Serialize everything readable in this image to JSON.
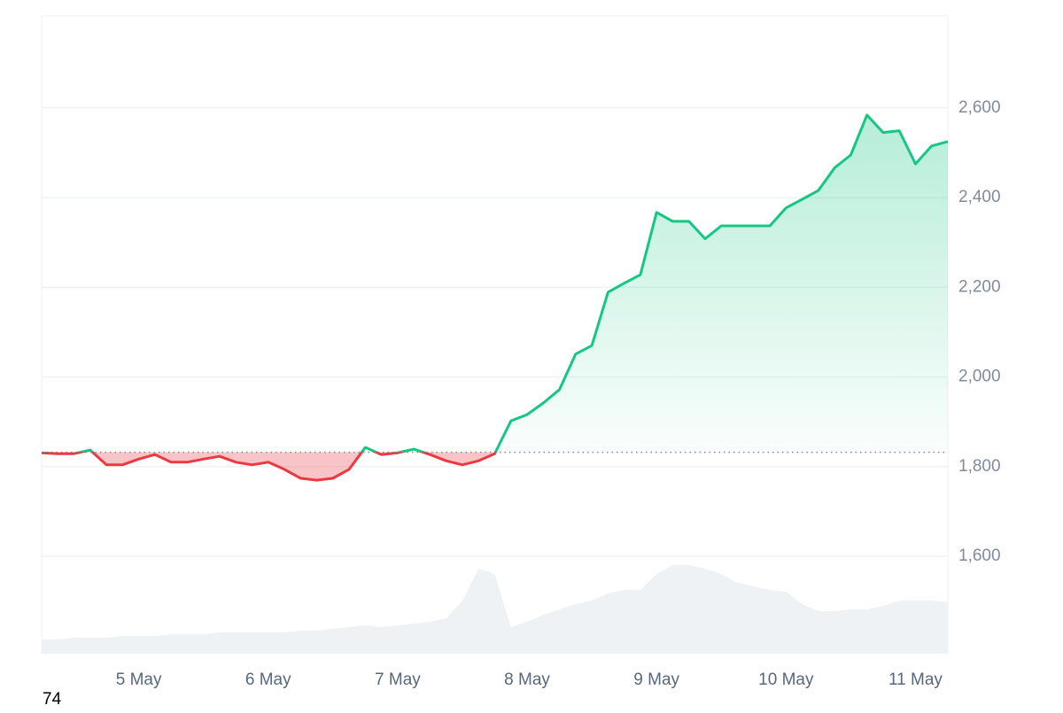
{
  "chart_data": {
    "type": "line",
    "categories": [
      null,
      null,
      null,
      null,
      null,
      null,
      "5 May",
      null,
      null,
      null,
      null,
      null,
      null,
      null,
      "6 May",
      null,
      null,
      null,
      null,
      null,
      null,
      null,
      "7 May",
      null,
      null,
      null,
      null,
      null,
      null,
      null,
      "8 May",
      null,
      null,
      null,
      null,
      null,
      null,
      null,
      "9 May",
      null,
      null,
      null,
      null,
      null,
      null,
      null,
      "10 May",
      null,
      null,
      null,
      null,
      null,
      null,
      null,
      "11 May",
      null,
      null
    ],
    "values": [
      1831,
      1829,
      1829,
      1837,
      1804,
      1804,
      1817,
      1827,
      1810,
      1810,
      1817,
      1823,
      1810,
      1804,
      1810,
      1794,
      1774,
      1770,
      1774,
      1794,
      1843,
      1827,
      1831,
      1839,
      1827,
      1813,
      1804,
      1813,
      1829,
      1902,
      1916,
      1942,
      1972,
      2051,
      2070,
      2189,
      2209,
      2228,
      2367,
      2347,
      2347,
      2308,
      2337,
      2337,
      2337,
      2337,
      2377,
      2396,
      2416,
      2466,
      2495,
      2584,
      2545,
      2549,
      2475,
      2515,
      2525
    ],
    "baseline": 1832,
    "color_up": "#16c784",
    "color_down": "#ea3943",
    "ylim": [
      1383,
      2805
    ],
    "yticks": [
      {
        "value": 1600,
        "label": "1,600"
      },
      {
        "value": 1800,
        "label": "1,800"
      },
      {
        "value": 2000,
        "label": "2,000"
      },
      {
        "value": 2200,
        "label": "2,200"
      },
      {
        "value": 2400,
        "label": "2,400"
      },
      {
        "value": 2600,
        "label": "2,600"
      }
    ],
    "grid": true,
    "volume": {
      "values": [
        8,
        8,
        9,
        9,
        9,
        10,
        10,
        10,
        11,
        11,
        11,
        12,
        12,
        12,
        12,
        12,
        13,
        13,
        14,
        15,
        16,
        15,
        16,
        17,
        18,
        20,
        30,
        48,
        45,
        15,
        18,
        22,
        25,
        28,
        30,
        34,
        36,
        36,
        45,
        50,
        50,
        48,
        45,
        40,
        38,
        36,
        35,
        28,
        24,
        24,
        25,
        25,
        27,
        30,
        30,
        30,
        29
      ],
      "ylim": [
        0,
        100
      ],
      "color": "#eff2f5"
    },
    "corner_label": "74"
  }
}
